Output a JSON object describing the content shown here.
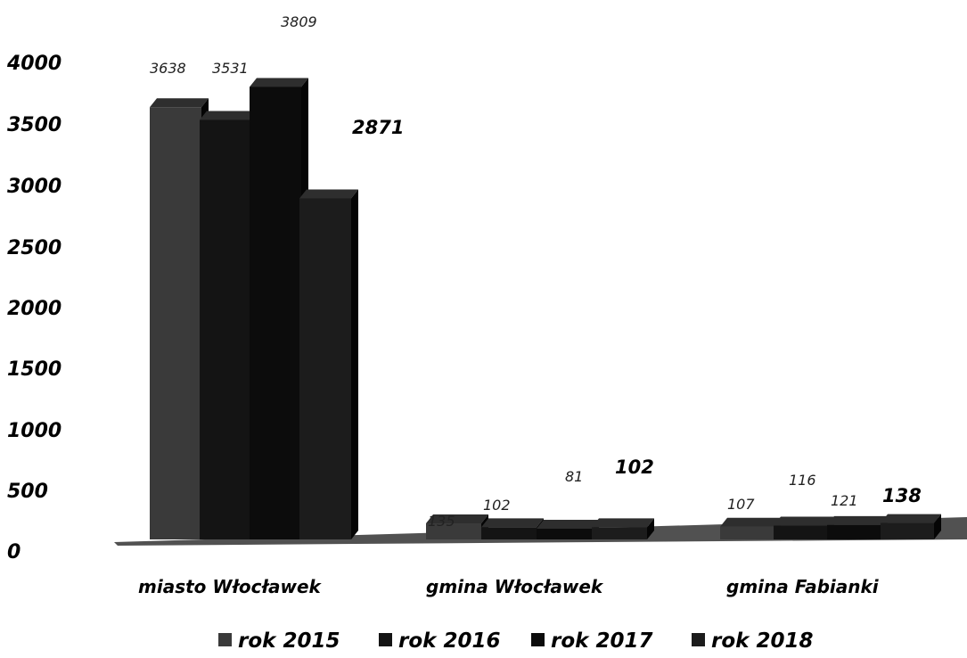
{
  "chart_data": {
    "type": "bar",
    "categories": [
      "miasto Włocławek",
      "gmina Włocławek",
      "gmina Fabianki"
    ],
    "series": [
      {
        "name": "rok 2015",
        "values": [
          3638,
          135,
          107
        ],
        "color": "#3a3a3a"
      },
      {
        "name": "rok 2016",
        "values": [
          3531,
          102,
          116
        ],
        "color": "#141414"
      },
      {
        "name": "rok 2017",
        "values": [
          3809,
          81,
          121
        ],
        "color": "#0c0c0c"
      },
      {
        "name": "rok 2018",
        "values": [
          2871,
          102,
          138
        ],
        "color": "#1c1c1c"
      }
    ],
    "y_ticks": [
      "4000",
      "3500",
      "3000",
      "2500",
      "2000",
      "1500",
      "1000",
      "500",
      "0"
    ],
    "ylim": [
      0,
      4000
    ],
    "grid": false,
    "legend_position": "bottom",
    "title": "",
    "xlabel": "",
    "ylabel": ""
  }
}
